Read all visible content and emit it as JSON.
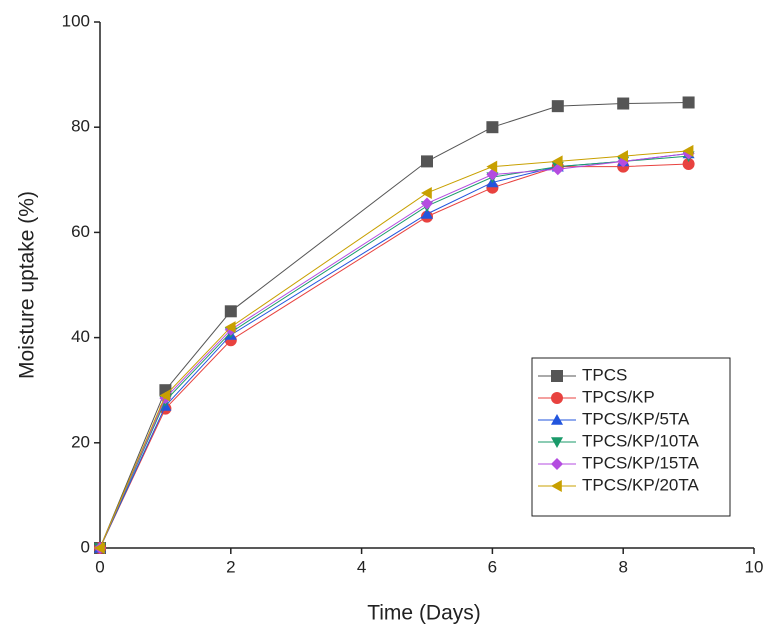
{
  "chart_data": {
    "type": "line",
    "x_label": "Time (Days)",
    "y_label": "Moisture uptake (%)",
    "x": [
      0,
      1,
      2,
      5,
      6,
      7,
      8,
      9
    ],
    "series": [
      {
        "name": "TPCS",
        "color": "#555555",
        "marker": "square",
        "values": [
          0,
          30,
          45,
          73.5,
          80,
          84,
          84.5,
          84.7
        ]
      },
      {
        "name": "TPCS/KP",
        "color": "#e8423f",
        "marker": "circle",
        "values": [
          0,
          26.5,
          39.5,
          63,
          68.5,
          72.5,
          72.5,
          73
        ]
      },
      {
        "name": "TPCS/KP/5TA",
        "color": "#2255dd",
        "marker": "triangle-up",
        "values": [
          0,
          27,
          40.5,
          63.5,
          69.5,
          72.5,
          73.5,
          75
        ]
      },
      {
        "name": "TPCS/KP/10TA",
        "color": "#1a9a6a",
        "marker": "triangle-down",
        "values": [
          0,
          28,
          41,
          65,
          70.5,
          72.5,
          73.5,
          74.5
        ]
      },
      {
        "name": "TPCS/KP/15TA",
        "color": "#b44ce0",
        "marker": "diamond",
        "values": [
          0,
          28.5,
          41.5,
          65.5,
          71,
          72,
          73.5,
          75
        ]
      },
      {
        "name": "TPCS/KP/20TA",
        "color": "#c8a000",
        "marker": "triangle-left",
        "values": [
          0,
          29,
          42,
          67.5,
          72.5,
          73.5,
          74.5,
          75.5
        ]
      }
    ],
    "xlim": [
      0,
      10
    ],
    "xticks": [
      0,
      2,
      4,
      6,
      8,
      10
    ],
    "ylim": [
      0,
      100
    ],
    "yticks": [
      0,
      20,
      40,
      60,
      80,
      100
    ],
    "grid": false,
    "legend": "lower right"
  }
}
